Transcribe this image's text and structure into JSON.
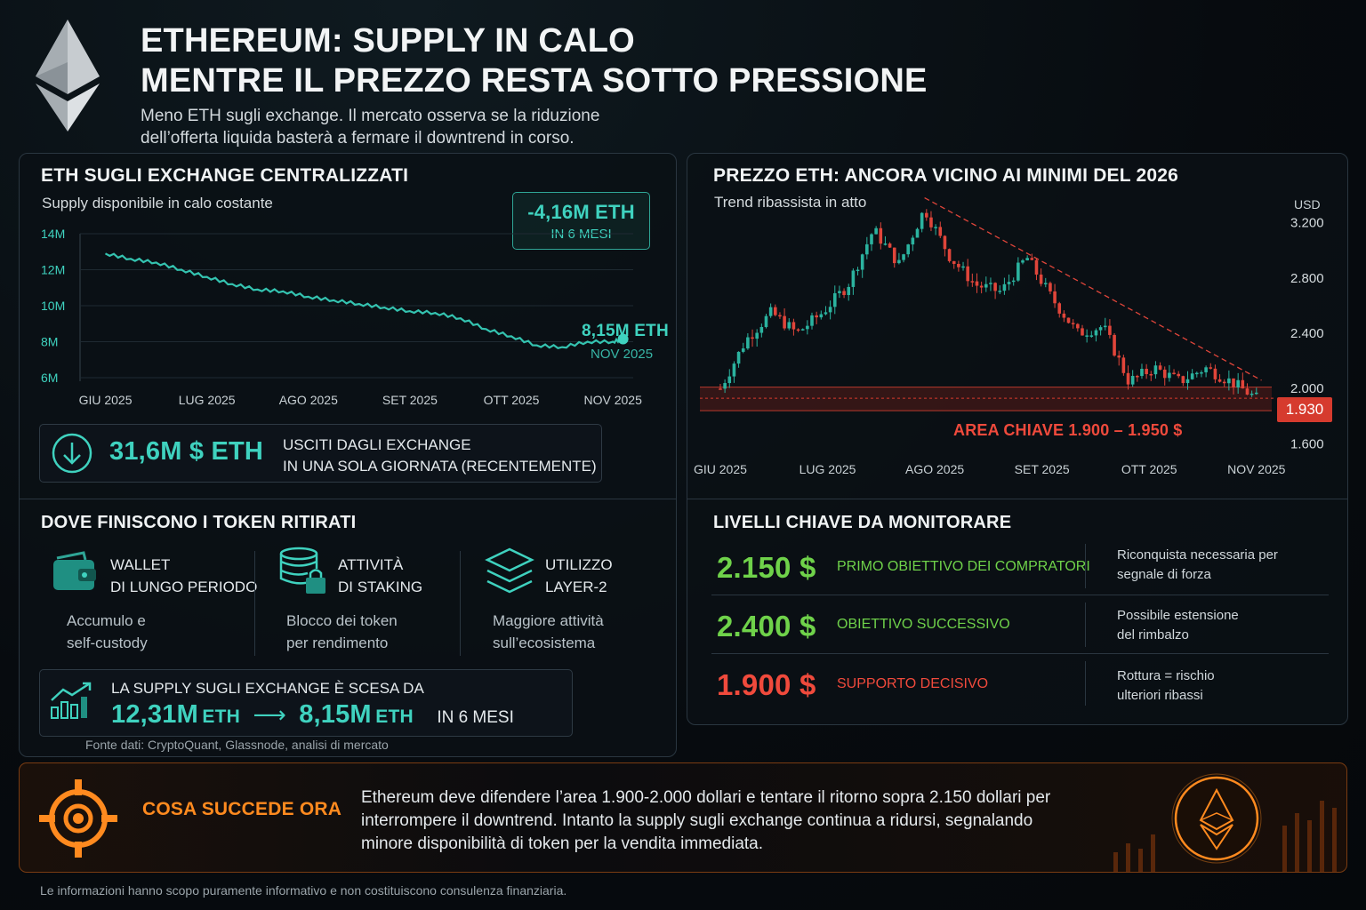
{
  "header": {
    "title_line1": "ETHEREUM: SUPPLY IN CALO",
    "title_line2": "MENTRE IL PREZZO RESTA SOTTO PRESSIONE",
    "subtitle_line1": "Meno ETH sugli exchange. Il mercato osserva se la riduzione",
    "subtitle_line2": "dell’offerta liquida basterà a fermare il downtrend in corso."
  },
  "supply_panel": {
    "title": "ETH SUGLI EXCHANGE CENTRALIZZATI",
    "subtitle": "Supply disponibile in calo costante",
    "badge_value": "-4,16M ETH",
    "badge_period": "IN 6 MESI",
    "end_label_value": "8,15M ETH",
    "end_label_date": "NOV 2025",
    "outflow_value": "31,6M $ ETH",
    "outflow_line1": "USCITI DAGLI EXCHANGE",
    "outflow_line2": "IN UNA SOLA GIORNATA (RECENTEMENTE)"
  },
  "price_panel": {
    "title": "PREZZO ETH: ANCORA VICINO AI MINIMI DEL 2026",
    "subtitle": "Trend ribassista in atto",
    "key_area_label": "AREA CHIAVE 1.900 – 1.950 $",
    "current_price_label": "1.930"
  },
  "destinations": {
    "title": "DOVE FINISCONO I TOKEN RITIRATI",
    "items": [
      {
        "icon": "wallet-icon",
        "title1": "WALLET",
        "title2": "DI LUNGO PERIODO",
        "desc1": "Accumulo e",
        "desc2": "self-custody"
      },
      {
        "icon": "staking-lock-icon",
        "title1": "ATTIVITÀ",
        "title2": "DI STAKING",
        "desc1": "Blocco dei token",
        "desc2": "per rendimento"
      },
      {
        "icon": "layers-icon",
        "title1": "UTILIZZO",
        "title2": "LAYER-2",
        "desc1": "Maggiore attività",
        "desc2": "sull’ecosistema"
      }
    ],
    "summary_line": "LA SUPPLY SUGLI EXCHANGE È SCESA DA",
    "from_value": "12,31M",
    "from_unit": "ETH",
    "arrow": "⟶",
    "to_value": "8,15M",
    "to_unit": "ETH",
    "period": "IN 6 MESI",
    "source": "Fonte dati: CryptoQuant, Glassnode, analisi di mercato"
  },
  "levels": {
    "title": "LIVELLI CHIAVE DA MONITORARE",
    "rows": [
      {
        "price": "2.150 $",
        "label": "PRIMO OBIETTIVO DEI COMPRATORI",
        "note1": "Riconquista necessaria per",
        "note2": "segnale di forza",
        "color": "#6fd24a"
      },
      {
        "price": "2.400 $",
        "label": "OBIETTIVO SUCCESSIVO",
        "note1": "Possibile estensione",
        "note2": "del rimbalzo",
        "color": "#6fd24a"
      },
      {
        "price": "1.900 $",
        "label": "SUPPORTO DECISIVO",
        "note1": "Rottura = rischio",
        "note2": "ulteriori ribassi",
        "color": "#f04a3c"
      }
    ]
  },
  "bottom": {
    "heading": "COSA SUCCEDE ORA",
    "text_line1": "Ethereum deve difendere l’area 1.900-2.000 dollari e tentare il ritorno sopra 2.150 dollari per",
    "text_line2": "interrompere il downtrend. Intanto la supply sugli exchange continua a ridursi, segnalando",
    "text_line3": "minore disponibilità di token per la vendita immediata."
  },
  "disclaimer": "Le informazioni hanno scopo puramente informativo e non costituiscono consulenza finanziaria.",
  "colors": {
    "teal": "#3fd2bf",
    "green": "#6fd24a",
    "red": "#f04a3c",
    "orange": "#ff8a1f"
  },
  "chart_data": [
    {
      "type": "line",
      "title": "ETH SUGLI EXCHANGE CENTRALIZZATI",
      "subtitle": "Supply disponibile in calo costante",
      "x_ticks": [
        "GIU 2025",
        "LUG 2025",
        "AGO 2025",
        "SET 2025",
        "OTT 2025",
        "NOV 2025"
      ],
      "y_ticks": [
        "14M",
        "12M",
        "10M",
        "8M",
        "6M"
      ],
      "ylim": [
        6,
        14
      ],
      "x": [
        0,
        0.25,
        0.5,
        0.75,
        1,
        1.25,
        1.5,
        1.75,
        2,
        2.25,
        2.5,
        2.75,
        3,
        3.25,
        3.5,
        3.75,
        4,
        4.25,
        4.5,
        4.75,
        5,
        5.1
      ],
      "values": [
        12.9,
        12.6,
        12.4,
        12.0,
        11.6,
        11.2,
        10.9,
        10.8,
        10.5,
        10.3,
        10.1,
        9.9,
        9.7,
        9.6,
        9.3,
        8.7,
        8.3,
        7.8,
        7.7,
        8.0,
        8.0,
        8.15
      ],
      "end_value_label": "8,15M ETH"
    },
    {
      "type": "candlestick",
      "title": "PREZZO ETH: ANCORA VICINO AI MINIMI DEL 2026",
      "subtitle": "Trend ribassista in atto",
      "unit_label": "USD",
      "x_ticks": [
        "GIU 2025",
        "LUG 2025",
        "AGO 2025",
        "SET 2025",
        "OTT 2025",
        "NOV 2025"
      ],
      "y_ticks": [
        "3.200",
        "2.800",
        "2.400",
        "2.000",
        "1.600"
      ],
      "ylim": [
        1500,
        3300
      ],
      "x": [
        0,
        0.25,
        0.5,
        0.75,
        1,
        1.25,
        1.5,
        1.75,
        2,
        2.25,
        2.5,
        2.75,
        3,
        3.25,
        3.5,
        3.75,
        4,
        4.25,
        4.5,
        4.75,
        5,
        5.25
      ],
      "close": [
        2000,
        2350,
        2550,
        2400,
        2550,
        2750,
        3150,
        2900,
        3300,
        2950,
        2750,
        2700,
        2950,
        2650,
        2400,
        2450,
        2050,
        2150,
        2050,
        2150,
        2050,
        1930
      ],
      "key_area": [
        1900,
        1950
      ],
      "current_price": 1930
    }
  ]
}
